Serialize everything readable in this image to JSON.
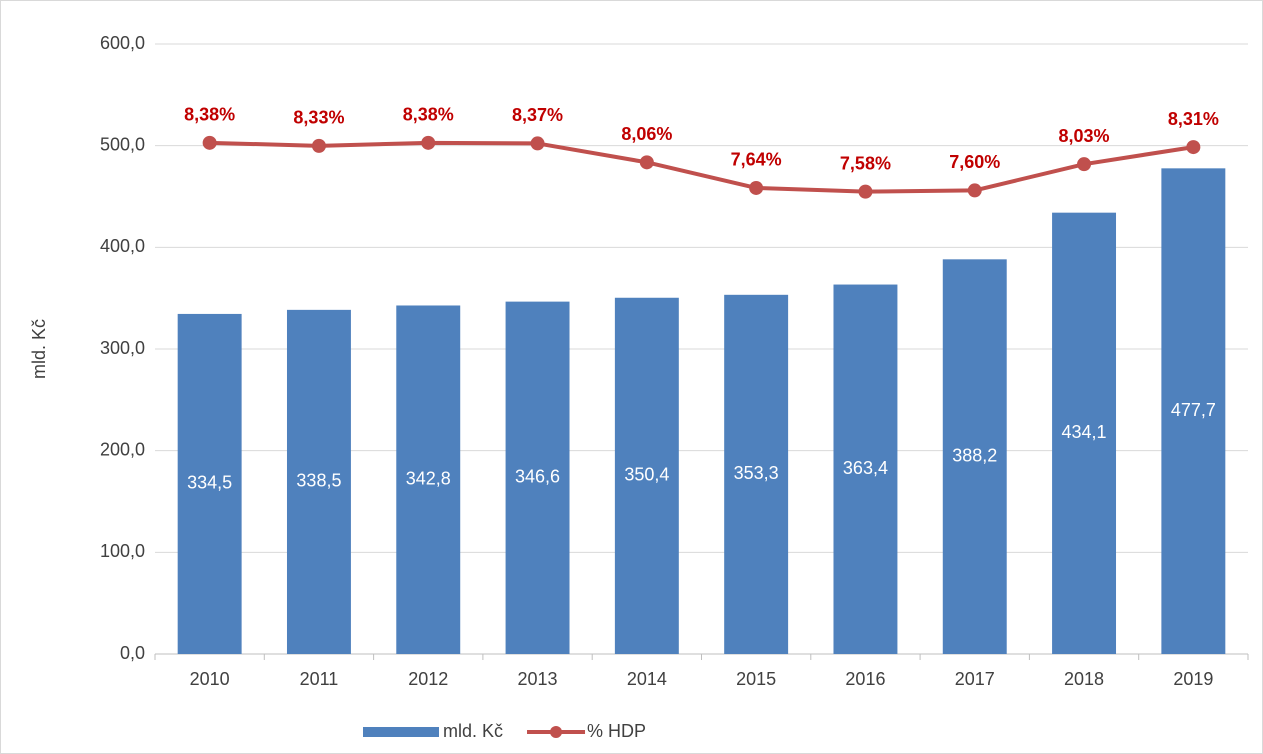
{
  "chart_data": {
    "type": "bar-line",
    "categories": [
      "2010",
      "2011",
      "2012",
      "2013",
      "2014",
      "2015",
      "2016",
      "2017",
      "2018",
      "2019"
    ],
    "y_label": "mld. Kč",
    "series": [
      {
        "name": "mld. Kč",
        "type": "bar",
        "color": "#4f81bd",
        "values": [
          334.5,
          338.5,
          342.8,
          346.6,
          350.4,
          353.3,
          363.4,
          388.2,
          434.1,
          477.7
        ],
        "value_labels": [
          "334,5",
          "338,5",
          "342,8",
          "346,6",
          "350,4",
          "353,3",
          "363,4",
          "388,2",
          "434,1",
          "477,7"
        ]
      },
      {
        "name": "% HDP",
        "type": "line",
        "axis": "y2",
        "color": "#c0504d",
        "label_color": "#c00000",
        "values": [
          8.38,
          8.33,
          8.38,
          8.37,
          8.06,
          7.64,
          7.58,
          7.6,
          8.03,
          8.31
        ],
        "value_labels": [
          "8,38%",
          "8,33%",
          "8,38%",
          "8,37%",
          "8,06%",
          "7,64%",
          "7,58%",
          "7,60%",
          "8,03%",
          "8,31%"
        ]
      }
    ],
    "ylim": [
      0,
      600
    ],
    "yticks": [
      {
        "value": 0,
        "label": "0,0"
      },
      {
        "value": 100,
        "label": "100,0"
      },
      {
        "value": 200,
        "label": "200,0"
      },
      {
        "value": 300,
        "label": "300,0"
      },
      {
        "value": 400,
        "label": "400,0"
      },
      {
        "value": 500,
        "label": "500,0"
      },
      {
        "value": 600,
        "label": "600,0"
      }
    ],
    "y2lim": [
      0,
      10
    ],
    "grid": true,
    "legend": "bottom"
  }
}
